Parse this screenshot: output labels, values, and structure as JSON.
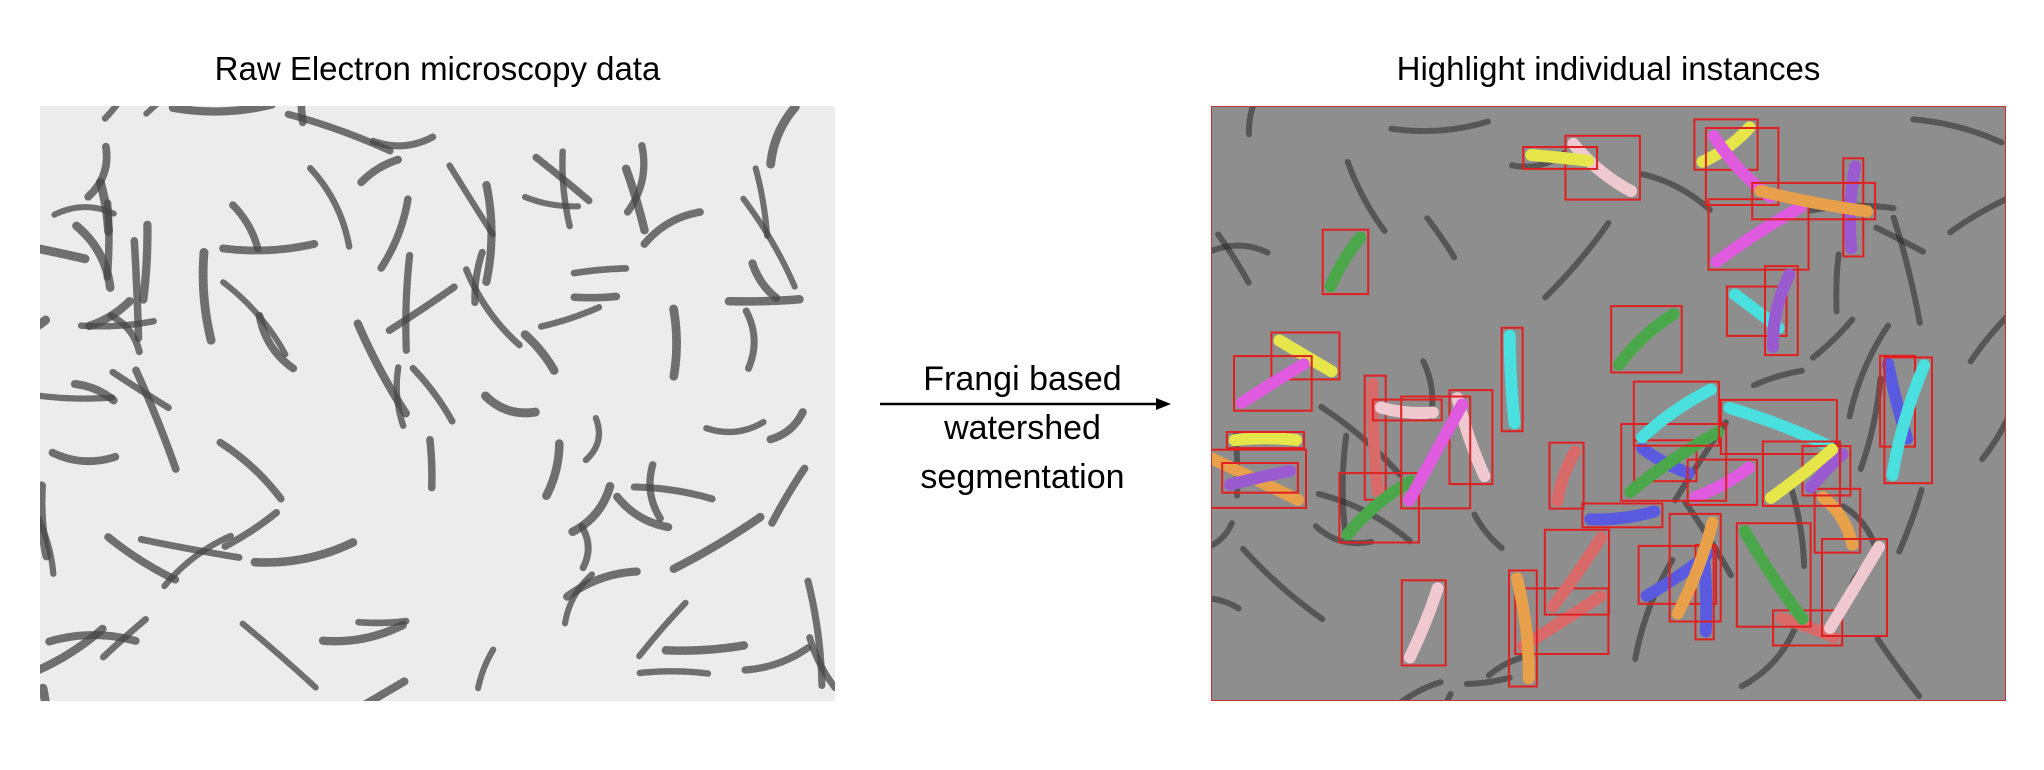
{
  "left_panel": {
    "title": "Raw Electron microscopy data"
  },
  "right_panel": {
    "title": "Highlight individual instances"
  },
  "arrow": {
    "line1": "Frangi based",
    "line2": "watershed",
    "line3": "segmentation"
  },
  "colors": {
    "bbox": "#e02020",
    "instances": [
      "#d96a6a",
      "#e6e64a",
      "#4aa84a",
      "#5a5ae0",
      "#e05ae0",
      "#4ae0e0",
      "#e8a04a",
      "#f0c8d0",
      "#9a5ad0"
    ]
  }
}
